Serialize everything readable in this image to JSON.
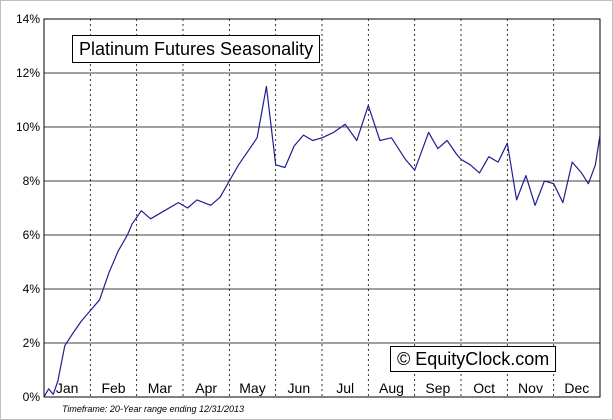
{
  "chart_data": {
    "type": "line",
    "title": "Platinum Futures Seasonality",
    "xlabel": "",
    "ylabel": "",
    "ylim": [
      0,
      14
    ],
    "y_ticks": [
      "0%",
      "2%",
      "4%",
      "6%",
      "8%",
      "10%",
      "12%",
      "14%"
    ],
    "months": [
      "Jan",
      "Feb",
      "Mar",
      "Apr",
      "May",
      "Jun",
      "Jul",
      "Aug",
      "Sep",
      "Oct",
      "Nov",
      "Dec"
    ],
    "grid": true,
    "line_color": "#1f1f8f",
    "series": [
      {
        "x": [
          0,
          0.1,
          0.2,
          0.3,
          0.45,
          0.6,
          0.8,
          1.0,
          1.2,
          1.4,
          1.6,
          1.8,
          1.9,
          2.1,
          2.3,
          2.6,
          2.9,
          3.1,
          3.3,
          3.6,
          3.8,
          4.0,
          4.2,
          4.4,
          4.6,
          4.8,
          5.0,
          5.2,
          5.4,
          5.6,
          5.8,
          6.0,
          6.25,
          6.5,
          6.75,
          7.0,
          7.25,
          7.5,
          7.8,
          8.0,
          8.3,
          8.5,
          8.7,
          8.9,
          9.0,
          9.2,
          9.4,
          9.6,
          9.8,
          10.0,
          10.2,
          10.4,
          10.6,
          10.8,
          11.0,
          11.2,
          11.4,
          11.6,
          11.75,
          11.9,
          12.0
        ],
        "y": [
          0.0,
          0.3,
          0.1,
          0.6,
          1.9,
          2.3,
          2.8,
          3.2,
          3.6,
          4.6,
          5.4,
          6.0,
          6.4,
          6.9,
          6.6,
          6.9,
          7.2,
          7.0,
          7.3,
          7.1,
          7.4,
          8.0,
          8.6,
          9.1,
          9.6,
          11.5,
          8.6,
          8.5,
          9.3,
          9.7,
          9.5,
          9.6,
          9.8,
          10.1,
          9.5,
          10.8,
          9.5,
          9.6,
          8.8,
          8.4,
          9.8,
          9.2,
          9.5,
          9.0,
          8.8,
          8.6,
          8.3,
          8.9,
          8.7,
          9.4,
          7.3,
          8.2,
          7.1,
          8.0,
          7.9,
          7.2,
          8.7,
          8.3,
          7.9,
          8.6,
          9.7
        ]
      }
    ]
  },
  "footnote": "Timeframe: 20-Year range ending 12/31/2013",
  "brand": "© EquityClock.com"
}
